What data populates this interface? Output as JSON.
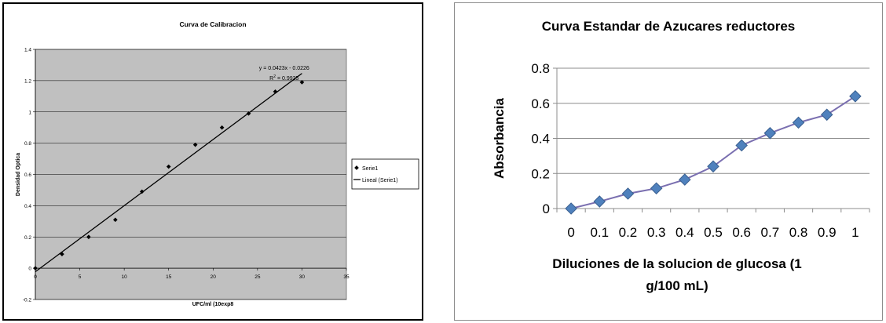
{
  "chart_data": [
    {
      "type": "scatter",
      "title": "Curva de Calibracion",
      "xlabel": "UFC/ml (10exp8",
      "ylabel": "Densidad Optica",
      "xlim": [
        0,
        35
      ],
      "ylim": [
        -0.2,
        1.4
      ],
      "x_ticks": [
        "0",
        "5",
        "10",
        "15",
        "20",
        "25",
        "30",
        "35"
      ],
      "y_ticks": [
        "-0.2",
        "0",
        "0.2",
        "0.4",
        "0.6",
        "0.8",
        "1",
        "1.2",
        "1.4"
      ],
      "grid": true,
      "plot_background": "#c0c0c0",
      "legend_position": "right",
      "series": [
        {
          "name": "Serie1",
          "x": [
            0,
            3,
            6,
            9,
            12,
            15,
            18,
            21,
            24,
            27,
            30
          ],
          "y": [
            0.0,
            0.09,
            0.2,
            0.31,
            0.49,
            0.65,
            0.79,
            0.9,
            0.99,
            1.13,
            1.19
          ]
        }
      ],
      "trendline": {
        "name": "Lineal (Serie1)",
        "slope": 0.0423,
        "intercept": -0.0226,
        "x_range": [
          0,
          30
        ]
      },
      "annotations": {
        "equation": "y = 0.0423x - 0.0226",
        "r2_prefix": "R",
        "r2_sup": "2",
        "r2_value": " = 0.9925"
      },
      "colors": {
        "points": "#000000",
        "line": "#000000"
      }
    },
    {
      "type": "line",
      "title": "Curva Estandar de Azucares reductores",
      "xlabel_lines": [
        "Diluciones de la solucion de glucosa (1",
        "g/100 mL)"
      ],
      "ylabel": "Absorbancia",
      "categories": [
        "0",
        "0.1",
        "0.2",
        "0.3",
        "0.4",
        "0.5",
        "0.6",
        "0.7",
        "0.8",
        "0.9",
        "1"
      ],
      "x_ticks_display": [
        "0",
        "0.1",
        "0.2",
        "0.3",
        "0.4",
        "0.5",
        "0.6",
        "0.7",
        "0.8",
        "0.9",
        "1"
      ],
      "ylim": [
        0,
        0.8
      ],
      "y_ticks": [
        "0",
        "0.2",
        "0.4",
        "0.6",
        "0.8"
      ],
      "grid": true,
      "legend": false,
      "series": [
        {
          "values": [
            0.0,
            0.04,
            0.085,
            0.115,
            0.165,
            0.24,
            0.36,
            0.43,
            0.49,
            0.535,
            0.64
          ]
        }
      ],
      "colors": {
        "line": "#7a6fb0",
        "marker": "#4f81bd",
        "marker_edge": "#3a5f8f"
      }
    }
  ]
}
